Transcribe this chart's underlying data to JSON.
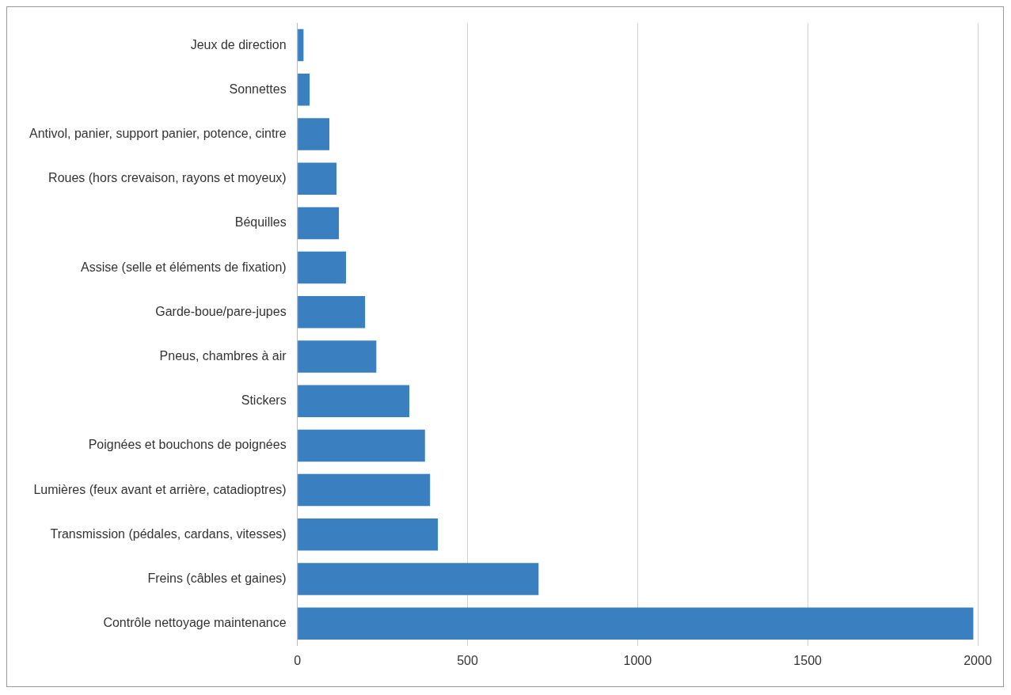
{
  "chart_data": {
    "type": "bar",
    "orientation": "horizontal",
    "categories": [
      "Jeux de direction",
      "Sonnettes",
      "Antivol, panier, support panier, potence, cintre",
      "Roues (hors crevaison, rayons et moyeux)",
      "Béquilles",
      "Assise (selle et éléments de fixation)",
      "Garde-boue/pare-jupes",
      "Pneus, chambres à air",
      "Stickers",
      "Poignées et bouchons de poignées",
      "Lumières (feux avant et arrière, catadioptres)",
      "Transmission (pédales, cardans, vitesses)",
      "Freins (câbles et gaines)",
      "Contrôle nettoyage maintenance"
    ],
    "values": [
      18,
      36,
      94,
      115,
      122,
      143,
      199,
      232,
      329,
      375,
      390,
      413,
      709,
      1987
    ],
    "color": "#3a7fbf",
    "xlim": [
      0,
      2000
    ],
    "xticks": [
      0,
      500,
      1000,
      1500,
      2000
    ],
    "grid": "x",
    "legend": false
  }
}
